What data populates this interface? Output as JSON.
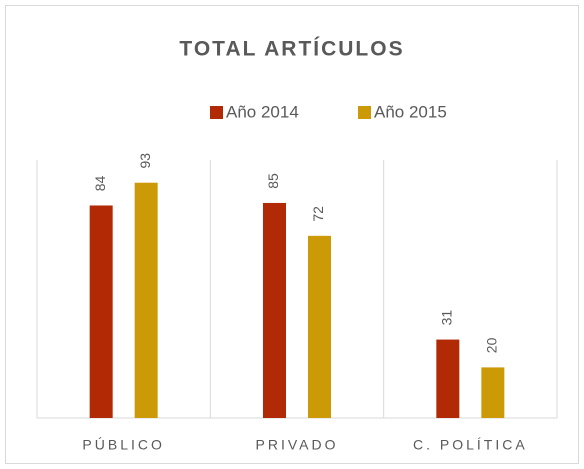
{
  "chart_data": {
    "type": "bar",
    "title": "TOTAL ARTÍCULOS",
    "categories": [
      "PÚBLICO",
      "PRIVADO",
      "C. POLÍTICA"
    ],
    "series": [
      {
        "name": "Año 2014",
        "color": "#b22a05",
        "values": [
          84,
          85,
          31
        ]
      },
      {
        "name": "Año 2015",
        "color": "#cc9a06",
        "values": [
          93,
          72,
          20
        ]
      }
    ],
    "ylim": [
      0,
      100
    ],
    "legend": "top"
  }
}
